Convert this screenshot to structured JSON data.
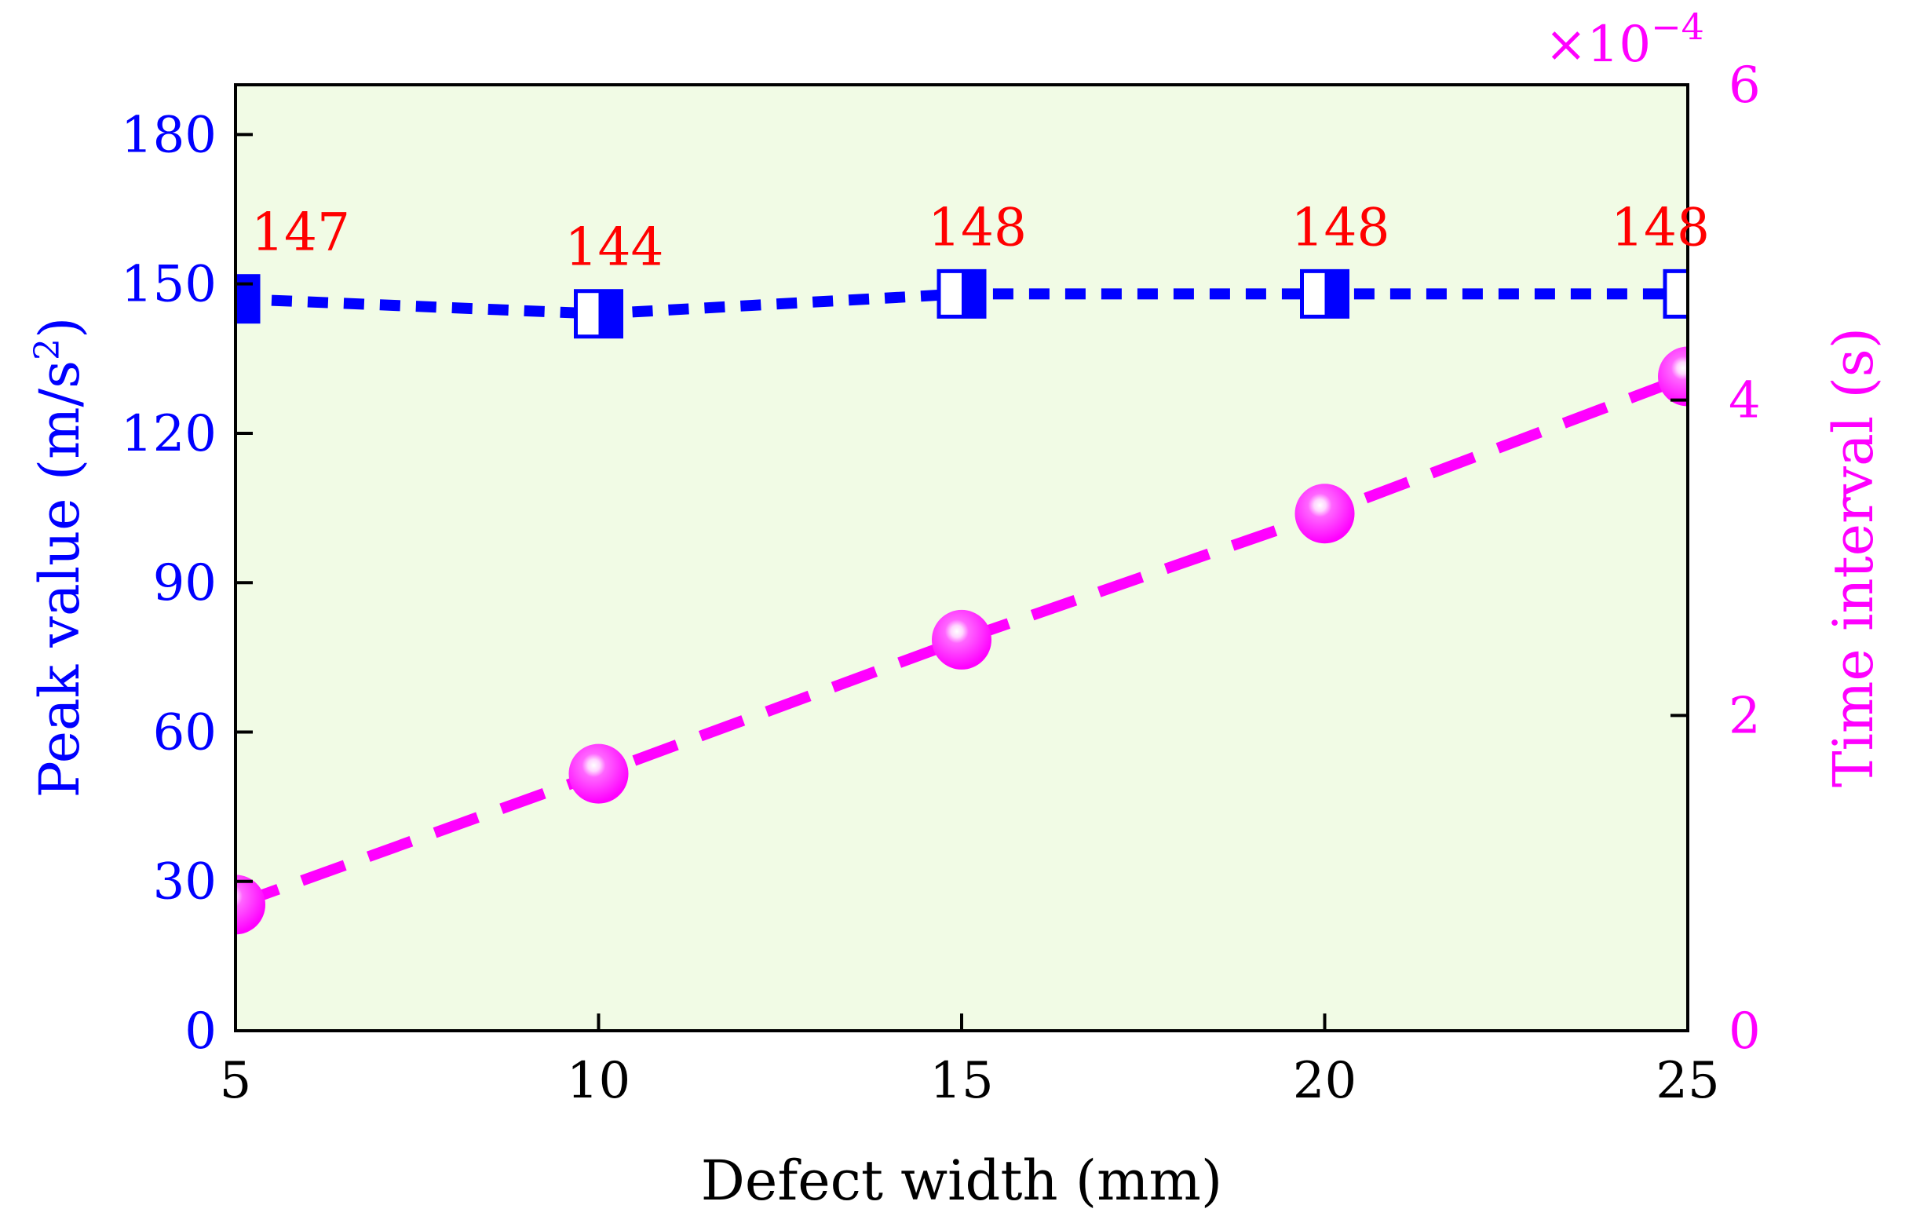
{
  "chart_data": {
    "type": "line",
    "background_color": "#f1fbe5",
    "x": [
      5,
      10,
      15,
      20,
      25
    ],
    "xlim": [
      5,
      25
    ],
    "xticks": [
      5,
      10,
      15,
      20,
      25
    ],
    "xlabel": "Defect width (mm)",
    "left_axis": {
      "label_main": "Peak value (m/s",
      "label_sup": "2",
      "label_end": ")",
      "ylim": [
        0,
        190
      ],
      "ticks": [
        0,
        30,
        60,
        90,
        120,
        150,
        180
      ],
      "color": "#0000ff"
    },
    "right_axis": {
      "label": "Time interval (s)",
      "ylim": [
        0,
        6
      ],
      "ticks": [
        0,
        2,
        4,
        6
      ],
      "multiplier_base": "×10",
      "multiplier_exp": "−4",
      "color": "#ff00ff"
    },
    "series": [
      {
        "name": "Peak value",
        "axis": "left",
        "marker": "half-filled square",
        "color": "#0000ff",
        "values": [
          147,
          144,
          148,
          148,
          148
        ],
        "data_labels": [
          "147",
          "144",
          "148",
          "148",
          "148"
        ],
        "label_color": "#ff0000"
      },
      {
        "name": "Time interval",
        "axis": "right",
        "marker": "sphere",
        "color": "#ff00ff",
        "values": [
          0.8,
          1.63,
          2.48,
          3.28,
          4.15
        ]
      }
    ]
  }
}
